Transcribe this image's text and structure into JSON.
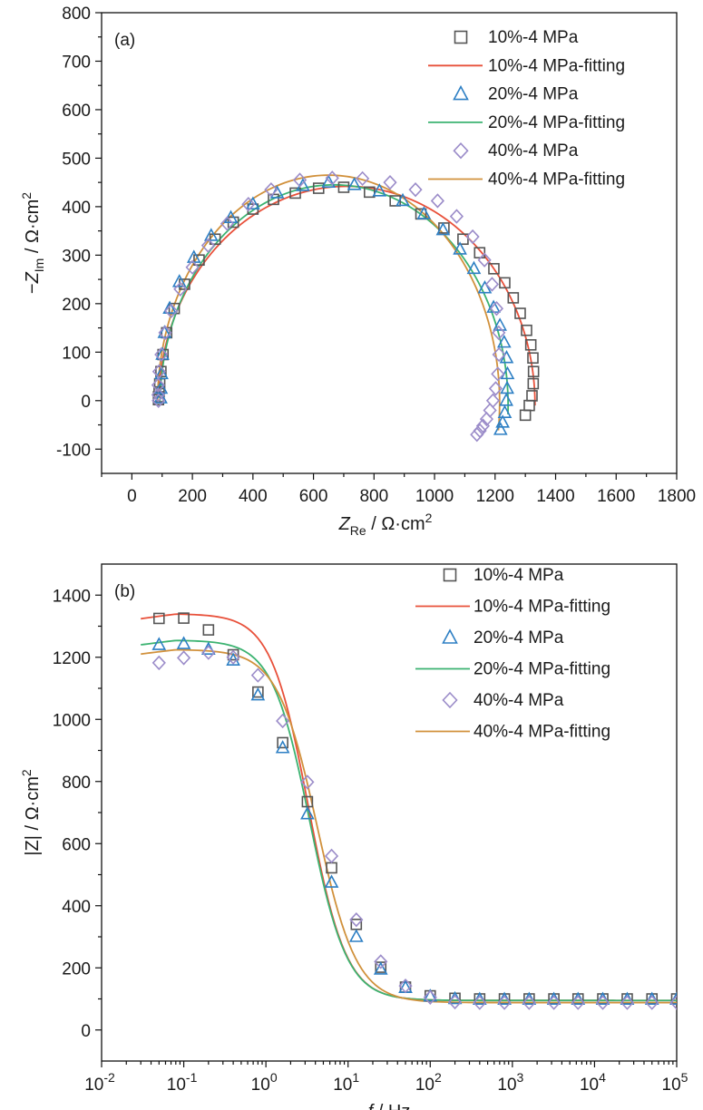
{
  "chart_data": [
    {
      "type": "scatter",
      "panel_label": "(a)",
      "xlabel": "Z_Re / Ω·cm²",
      "xlabel_parts": {
        "sym": "Z",
        "sub": "Re",
        "unit": " / Ω·cm",
        "sup": "2"
      },
      "ylabel": "−Z_Im / Ω·cm²",
      "ylabel_parts": {
        "pre": "−",
        "sym": "Z",
        "sub": "Im",
        "unit": " / Ω·cm",
        "sup": "2"
      },
      "xlim": [
        -100,
        1800
      ],
      "ylim": [
        -150,
        800
      ],
      "x_ticks": [
        0,
        200,
        400,
        600,
        800,
        1000,
        1200,
        1400,
        1600,
        1800
      ],
      "x_tick_labels": [
        "0",
        "200",
        "400",
        "600",
        "800",
        "1000",
        "1200",
        "1400",
        "1600",
        "1800"
      ],
      "y_ticks": [
        -100,
        0,
        100,
        200,
        300,
        400,
        500,
        600,
        700,
        800
      ],
      "y_tick_labels": [
        "-100",
        "0",
        "100",
        "200",
        "300",
        "400",
        "500",
        "600",
        "700",
        "800"
      ],
      "legend_position": "top-right",
      "series": [
        {
          "name": "10%-4 MPa",
          "kind": "markers",
          "marker": "square",
          "color": "#555555",
          "x": [
            1300,
            1313,
            1322,
            1326,
            1327,
            1325,
            1318,
            1304,
            1283,
            1260,
            1232,
            1196,
            1149,
            1094,
            1031,
            955,
            870,
            785,
            700,
            617,
            540,
            468,
            400,
            335,
            275,
            222,
            174,
            140,
            115,
            103,
            96,
            92,
            90,
            88,
            88
          ],
          "y": [
            -30,
            -10,
            10,
            35,
            60,
            88,
            115,
            145,
            180,
            212,
            243,
            272,
            305,
            333,
            356,
            385,
            412,
            430,
            440,
            438,
            428,
            415,
            395,
            368,
            333,
            290,
            240,
            190,
            140,
            95,
            60,
            35,
            18,
            8,
            2
          ]
        },
        {
          "name": "10%-4 MPa-fitting",
          "kind": "line",
          "color": "#e8503a",
          "center": [
            710,
            -10
          ],
          "radius": [
            622,
            452
          ],
          "theta": [
            0.0,
            3.1
          ]
        },
        {
          "name": "20%-4 MPa",
          "kind": "markers",
          "marker": "triangle",
          "color": "#2d7fc4",
          "x": [
            1218,
            1225,
            1232,
            1237,
            1240,
            1241,
            1238,
            1230,
            1216,
            1195,
            1166,
            1130,
            1084,
            1028,
            965,
            895,
            818,
            735,
            650,
            565,
            480,
            400,
            327,
            262,
            205,
            157,
            125,
            108,
            101,
            98,
            96,
            95
          ],
          "y": [
            -60,
            -45,
            -25,
            0,
            25,
            55,
            88,
            120,
            155,
            192,
            232,
            272,
            312,
            352,
            385,
            412,
            432,
            445,
            450,
            443,
            428,
            405,
            377,
            340,
            295,
            245,
            190,
            140,
            95,
            55,
            25,
            5
          ]
        },
        {
          "name": "20%-4 MPa-fitting",
          "kind": "line",
          "color": "#3cb371",
          "center": [
            668,
            -10
          ],
          "radius": [
            575,
            455
          ],
          "theta": [
            -0.04,
            3.12
          ]
        },
        {
          "name": "40%-4 MPa",
          "kind": "markers",
          "marker": "diamond",
          "color": "#9b8cc9",
          "x": [
            1140,
            1150,
            1160,
            1172,
            1183,
            1193,
            1202,
            1209,
            1213,
            1212,
            1205,
            1190,
            1165,
            1126,
            1073,
            1010,
            937,
            853,
            762,
            662,
            555,
            460,
            385,
            315,
            252,
            200,
            160,
            130,
            110,
            97,
            90,
            87,
            87,
            88
          ],
          "y": [
            -70,
            -62,
            -52,
            -38,
            -20,
            0,
            25,
            55,
            95,
            140,
            190,
            240,
            290,
            338,
            380,
            412,
            435,
            450,
            458,
            459,
            455,
            435,
            405,
            365,
            320,
            275,
            230,
            185,
            140,
            95,
            60,
            32,
            12,
            0
          ]
        },
        {
          "name": "40%-4 MPa-fitting",
          "kind": "line",
          "color": "#d1913c",
          "center": [
            650,
            -5
          ],
          "radius": [
            565,
            470
          ],
          "theta": [
            -0.12,
            3.13
          ]
        }
      ]
    },
    {
      "type": "scatter",
      "panel_label": "(b)",
      "xscale": "log",
      "xlabel": "f / Hz",
      "xlabel_parts": {
        "sym": "f",
        "unit": " / Hz"
      },
      "ylabel": "|Z| / Ω·cm²",
      "ylabel_parts": {
        "unit": "|Z| / Ω·cm",
        "sup": "2"
      },
      "xlim": [
        0.01,
        100000
      ],
      "ylim": [
        -100,
        1500
      ],
      "x_ticks": [
        0.01,
        0.1,
        1,
        10,
        100,
        1000,
        10000,
        100000
      ],
      "x_tick_labels": [
        [
          "10",
          "-2"
        ],
        [
          "10",
          "-1"
        ],
        [
          "10",
          "0"
        ],
        [
          "10",
          "1"
        ],
        [
          "10",
          "2"
        ],
        [
          "10",
          "3"
        ],
        [
          "10",
          "4"
        ],
        [
          "10",
          "5"
        ]
      ],
      "y_ticks": [
        0,
        200,
        400,
        600,
        800,
        1000,
        1200,
        1400
      ],
      "y_tick_labels": [
        "0",
        "200",
        "400",
        "600",
        "800",
        "1000",
        "1200",
        "1400"
      ],
      "legend_position": "top-right",
      "series": [
        {
          "name": "10%-4 MPa",
          "kind": "markers",
          "marker": "square",
          "color": "#555555",
          "x": [
            0.05,
            0.1,
            0.2,
            0.4,
            0.8,
            1.6,
            3.2,
            6.3,
            12.6,
            25,
            50,
            100,
            200,
            400,
            800,
            1600,
            3200,
            6300,
            12600,
            25000,
            50000,
            100000
          ],
          "y": [
            1325,
            1326,
            1288,
            1208,
            1088,
            925,
            735,
            522,
            340,
            202,
            138,
            110,
            102,
            100,
            100,
            100,
            100,
            100,
            100,
            100,
            100,
            100
          ]
        },
        {
          "name": "10%-4 MPa-fitting",
          "kind": "line",
          "color": "#e8503a",
          "plateau": [
            1340,
            95
          ],
          "f0": 3.3,
          "n": 1.9
        },
        {
          "name": "20%-4 MPa",
          "kind": "markers",
          "marker": "triangle",
          "color": "#2d7fc4",
          "x": [
            0.05,
            0.1,
            0.2,
            0.4,
            0.8,
            1.6,
            3.2,
            6.3,
            12.6,
            25,
            50,
            100,
            200,
            400,
            800,
            1600,
            3200,
            6300,
            12600,
            25000,
            50000,
            100000
          ],
          "y": [
            1240,
            1243,
            1225,
            1190,
            1078,
            908,
            695,
            475,
            300,
            195,
            136,
            108,
            100,
            98,
            98,
            98,
            98,
            98,
            98,
            98,
            98,
            98
          ]
        },
        {
          "name": "20%-4 MPa-fitting",
          "kind": "line",
          "color": "#3cb371",
          "plateau": [
            1255,
            95
          ],
          "f0": 3.4,
          "n": 1.9
        },
        {
          "name": "40%-4 MPa",
          "kind": "markers",
          "marker": "diamond",
          "color": "#9b8cc9",
          "x": [
            0.05,
            0.1,
            0.2,
            0.4,
            0.8,
            1.6,
            3.2,
            6.3,
            12.6,
            25,
            50,
            100,
            200,
            400,
            800,
            1600,
            3200,
            6300,
            12600,
            25000,
            50000,
            100000
          ],
          "y": [
            1182,
            1198,
            1215,
            1200,
            1142,
            995,
            798,
            560,
            355,
            220,
            142,
            105,
            90,
            88,
            88,
            88,
            88,
            88,
            88,
            88,
            88,
            88
          ]
        },
        {
          "name": "40%-4 MPa-fitting",
          "kind": "line",
          "color": "#d1913c",
          "plateau": [
            1225,
            88
          ],
          "f0": 4.2,
          "n": 1.8
        }
      ]
    }
  ]
}
